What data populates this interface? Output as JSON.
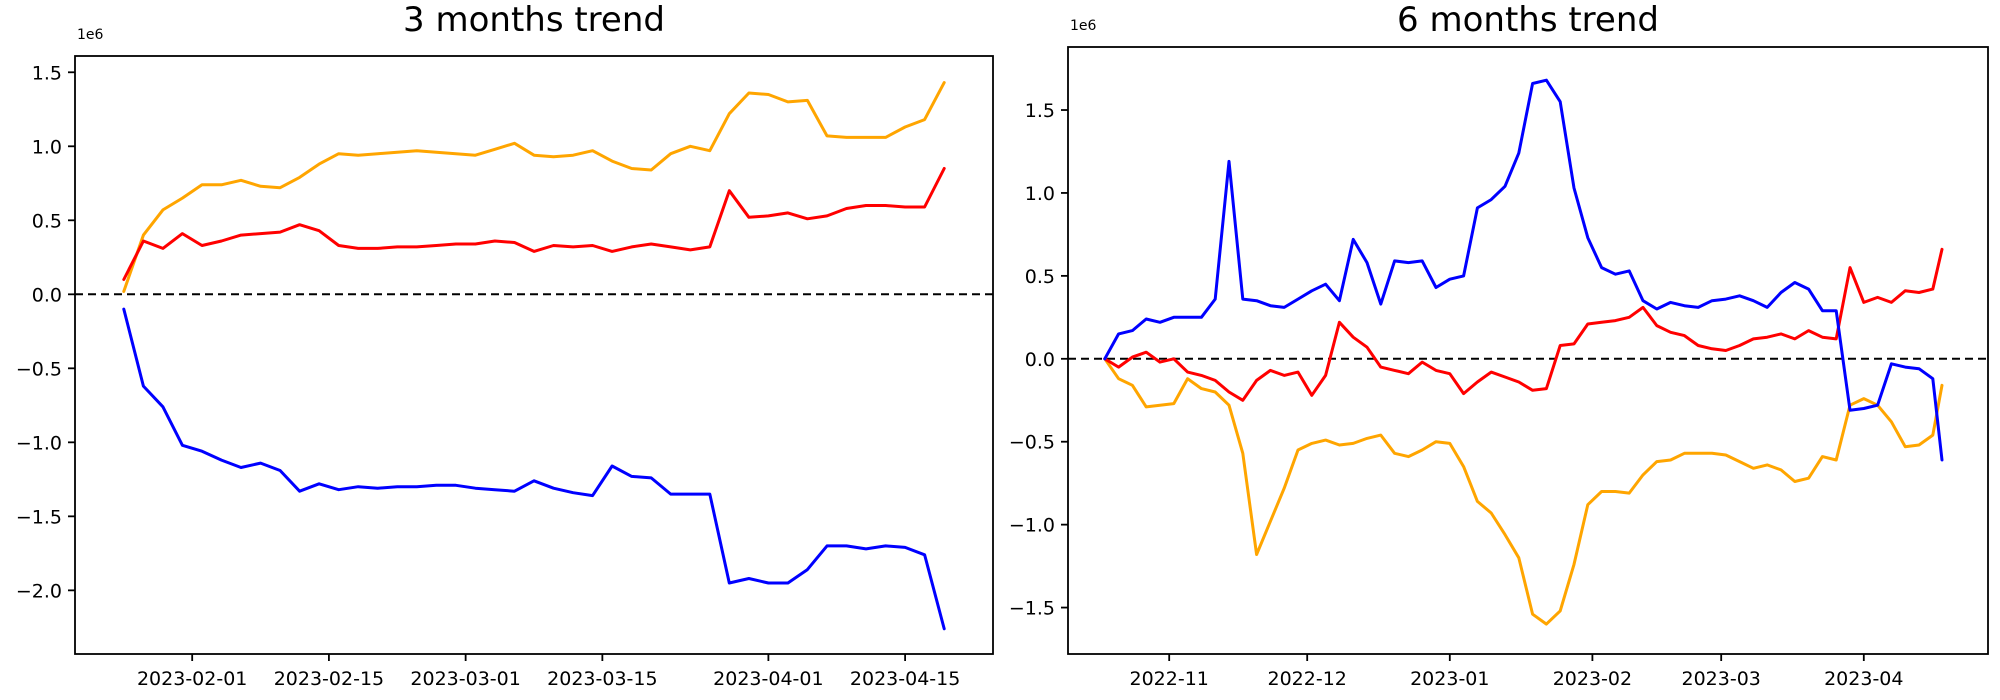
{
  "figure": {
    "background_color": "#ffffff",
    "text_color": "#000000"
  },
  "chart_data": [
    {
      "type": "line",
      "title": "3 months trend",
      "y_offset_label": "1e6",
      "unit_multiplier": 1000000,
      "grid": false,
      "legend": null,
      "zero_dashed_line": true,
      "xlim": [
        "2023-01-20",
        "2023-04-24"
      ],
      "ylim": [
        -2.43,
        1.61
      ],
      "x_ticks": [
        {
          "label": "2023-02-01",
          "date": "2023-02-01"
        },
        {
          "label": "2023-02-15",
          "date": "2023-02-15"
        },
        {
          "label": "2023-03-01",
          "date": "2023-03-01"
        },
        {
          "label": "2023-03-15",
          "date": "2023-03-15"
        },
        {
          "label": "2023-04-01",
          "date": "2023-04-01"
        },
        {
          "label": "2023-04-15",
          "date": "2023-04-15"
        }
      ],
      "y_ticks": [
        {
          "label": "1.5",
          "value": 1.5
        },
        {
          "label": "1.0",
          "value": 1.0
        },
        {
          "label": "0.5",
          "value": 0.5
        },
        {
          "label": "0.0",
          "value": 0.0
        },
        {
          "label": "−0.5",
          "value": -0.5
        },
        {
          "label": "−1.0",
          "value": -1.0
        },
        {
          "label": "−1.5",
          "value": -1.5
        },
        {
          "label": "−2.0",
          "value": -2.0
        }
      ],
      "dates": [
        "2023-01-25",
        "2023-01-27",
        "2023-01-29",
        "2023-01-31",
        "2023-02-02",
        "2023-02-04",
        "2023-02-06",
        "2023-02-08",
        "2023-02-10",
        "2023-02-12",
        "2023-02-14",
        "2023-02-16",
        "2023-02-18",
        "2023-02-20",
        "2023-02-22",
        "2023-02-24",
        "2023-02-26",
        "2023-02-28",
        "2023-03-02",
        "2023-03-04",
        "2023-03-06",
        "2023-03-08",
        "2023-03-10",
        "2023-03-12",
        "2023-03-14",
        "2023-03-16",
        "2023-03-18",
        "2023-03-20",
        "2023-03-22",
        "2023-03-24",
        "2023-03-26",
        "2023-03-28",
        "2023-03-30",
        "2023-04-01",
        "2023-04-03",
        "2023-04-05",
        "2023-04-07",
        "2023-04-09",
        "2023-04-11",
        "2023-04-13",
        "2023-04-15",
        "2023-04-17",
        "2023-04-19"
      ],
      "series": [
        {
          "name": "orange-line",
          "color": "#ffa500",
          "values": [
            0.02,
            0.4,
            0.57,
            0.65,
            0.74,
            0.74,
            0.77,
            0.73,
            0.72,
            0.79,
            0.88,
            0.95,
            0.94,
            0.95,
            0.96,
            0.97,
            0.96,
            0.95,
            0.94,
            0.98,
            1.02,
            0.94,
            0.93,
            0.94,
            0.97,
            0.9,
            0.85,
            0.84,
            0.95,
            1.0,
            0.97,
            1.22,
            1.36,
            1.35,
            1.3,
            1.31,
            1.07,
            1.06,
            1.06,
            1.06,
            1.13,
            1.18,
            1.43
          ]
        },
        {
          "name": "red-line",
          "color": "#ff0000",
          "values": [
            0.1,
            0.36,
            0.31,
            0.41,
            0.33,
            0.36,
            0.4,
            0.41,
            0.42,
            0.47,
            0.43,
            0.33,
            0.31,
            0.31,
            0.32,
            0.32,
            0.33,
            0.34,
            0.34,
            0.36,
            0.35,
            0.29,
            0.33,
            0.32,
            0.33,
            0.29,
            0.32,
            0.34,
            0.32,
            0.3,
            0.32,
            0.7,
            0.52,
            0.53,
            0.55,
            0.51,
            0.53,
            0.58,
            0.6,
            0.6,
            0.59,
            0.59,
            0.85
          ]
        },
        {
          "name": "blue-line",
          "color": "#0000ff",
          "values": [
            -0.1,
            -0.62,
            -0.76,
            -1.02,
            -1.06,
            -1.12,
            -1.17,
            -1.14,
            -1.19,
            -1.33,
            -1.28,
            -1.32,
            -1.3,
            -1.31,
            -1.3,
            -1.3,
            -1.29,
            -1.29,
            -1.31,
            -1.32,
            -1.33,
            -1.26,
            -1.31,
            -1.34,
            -1.36,
            -1.16,
            -1.23,
            -1.24,
            -1.35,
            -1.35,
            -1.35,
            -1.95,
            -1.92,
            -1.95,
            -1.95,
            -1.86,
            -1.7,
            -1.7,
            -1.72,
            -1.7,
            -1.71,
            -1.76,
            -2.26
          ]
        }
      ]
    },
    {
      "type": "line",
      "title": "6 months trend",
      "y_offset_label": "1e6",
      "unit_multiplier": 1000000,
      "grid": false,
      "legend": null,
      "zero_dashed_line": true,
      "xlim": [
        "2022-10-10",
        "2023-04-28"
      ],
      "ylim": [
        -1.78,
        1.88
      ],
      "x_ticks": [
        {
          "label": "2022-11",
          "date": "2022-11-01"
        },
        {
          "label": "2022-12",
          "date": "2022-12-01"
        },
        {
          "label": "2023-01",
          "date": "2023-01-01"
        },
        {
          "label": "2023-02",
          "date": "2023-02-01"
        },
        {
          "label": "2023-03",
          "date": "2023-03-01"
        },
        {
          "label": "2023-04",
          "date": "2023-04-01"
        }
      ],
      "y_ticks": [
        {
          "label": "1.5",
          "value": 1.5
        },
        {
          "label": "1.0",
          "value": 1.0
        },
        {
          "label": "0.5",
          "value": 0.5
        },
        {
          "label": "0.0",
          "value": 0.0
        },
        {
          "label": "−0.5",
          "value": -0.5
        },
        {
          "label": "−1.0",
          "value": -1.0
        },
        {
          "label": "−1.5",
          "value": -1.5
        }
      ],
      "dates": [
        "2022-10-18",
        "2022-10-21",
        "2022-10-24",
        "2022-10-27",
        "2022-10-30",
        "2022-11-02",
        "2022-11-05",
        "2022-11-08",
        "2022-11-11",
        "2022-11-14",
        "2022-11-17",
        "2022-11-20",
        "2022-11-23",
        "2022-11-26",
        "2022-11-29",
        "2022-12-02",
        "2022-12-05",
        "2022-12-08",
        "2022-12-11",
        "2022-12-14",
        "2022-12-17",
        "2022-12-20",
        "2022-12-23",
        "2022-12-26",
        "2022-12-29",
        "2023-01-01",
        "2023-01-04",
        "2023-01-07",
        "2023-01-10",
        "2023-01-13",
        "2023-01-16",
        "2023-01-19",
        "2023-01-22",
        "2023-01-25",
        "2023-01-28",
        "2023-01-31",
        "2023-02-03",
        "2023-02-06",
        "2023-02-09",
        "2023-02-12",
        "2023-02-15",
        "2023-02-18",
        "2023-02-21",
        "2023-02-24",
        "2023-02-27",
        "2023-03-02",
        "2023-03-05",
        "2023-03-08",
        "2023-03-11",
        "2023-03-14",
        "2023-03-17",
        "2023-03-20",
        "2023-03-23",
        "2023-03-26",
        "2023-03-29",
        "2023-04-01",
        "2023-04-04",
        "2023-04-07",
        "2023-04-10",
        "2023-04-13",
        "2023-04-16",
        "2023-04-18"
      ],
      "series": [
        {
          "name": "orange-line",
          "color": "#ffa500",
          "values": [
            0.0,
            -0.12,
            -0.16,
            -0.29,
            -0.28,
            -0.27,
            -0.12,
            -0.18,
            -0.2,
            -0.28,
            -0.57,
            -1.18,
            -0.98,
            -0.78,
            -0.55,
            -0.51,
            -0.49,
            -0.52,
            -0.51,
            -0.48,
            -0.46,
            -0.57,
            -0.59,
            -0.55,
            -0.5,
            -0.51,
            -0.65,
            -0.86,
            -0.93,
            -1.06,
            -1.2,
            -1.54,
            -1.6,
            -1.52,
            -1.24,
            -0.88,
            -0.8,
            -0.8,
            -0.81,
            -0.7,
            -0.62,
            -0.61,
            -0.57,
            -0.57,
            -0.57,
            -0.58,
            -0.62,
            -0.66,
            -0.64,
            -0.67,
            -0.74,
            -0.72,
            -0.59,
            -0.61,
            -0.28,
            -0.24,
            -0.28,
            -0.38,
            -0.53,
            -0.52,
            -0.46,
            -0.16
          ]
        },
        {
          "name": "red-line",
          "color": "#ff0000",
          "values": [
            0.0,
            -0.05,
            0.01,
            0.04,
            -0.02,
            0.0,
            -0.08,
            -0.1,
            -0.13,
            -0.2,
            -0.25,
            -0.13,
            -0.07,
            -0.1,
            -0.08,
            -0.22,
            -0.1,
            0.22,
            0.13,
            0.07,
            -0.05,
            -0.07,
            -0.09,
            -0.02,
            -0.07,
            -0.09,
            -0.21,
            -0.14,
            -0.08,
            -0.11,
            -0.14,
            -0.19,
            -0.18,
            0.08,
            0.09,
            0.21,
            0.22,
            0.23,
            0.25,
            0.31,
            0.2,
            0.16,
            0.14,
            0.08,
            0.06,
            0.05,
            0.08,
            0.12,
            0.13,
            0.15,
            0.12,
            0.17,
            0.13,
            0.12,
            0.55,
            0.34,
            0.37,
            0.34,
            0.41,
            0.4,
            0.42,
            0.66
          ]
        },
        {
          "name": "blue-line",
          "color": "#0000ff",
          "values": [
            0.0,
            0.15,
            0.17,
            0.24,
            0.22,
            0.25,
            0.25,
            0.25,
            0.36,
            1.19,
            0.36,
            0.35,
            0.32,
            0.31,
            0.36,
            0.41,
            0.45,
            0.35,
            0.72,
            0.58,
            0.33,
            0.59,
            0.58,
            0.59,
            0.43,
            0.48,
            0.5,
            0.91,
            0.96,
            1.04,
            1.24,
            1.66,
            1.68,
            1.55,
            1.03,
            0.73,
            0.55,
            0.51,
            0.53,
            0.35,
            0.3,
            0.34,
            0.32,
            0.31,
            0.35,
            0.36,
            0.38,
            0.35,
            0.31,
            0.4,
            0.46,
            0.42,
            0.29,
            0.29,
            -0.31,
            -0.3,
            -0.28,
            -0.03,
            -0.05,
            -0.06,
            -0.12,
            -0.61
          ]
        }
      ]
    }
  ]
}
